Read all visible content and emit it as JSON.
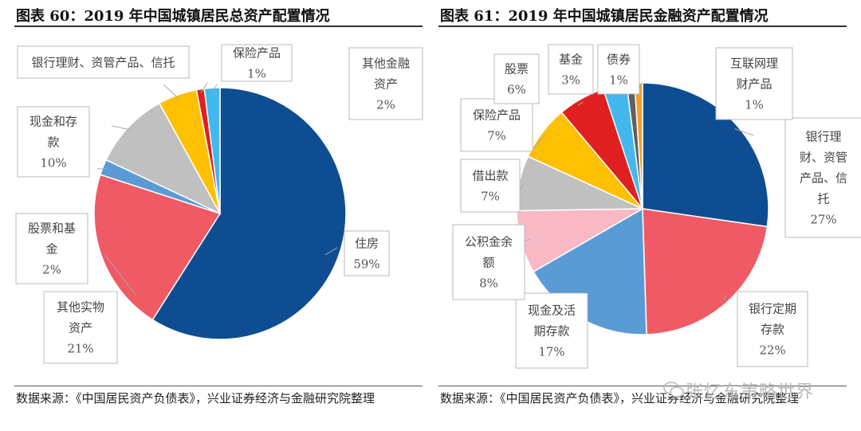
{
  "chart_data": [
    {
      "type": "pie",
      "title": "图表 60：2019 年中国城镇居民总资产配置情况",
      "source": "数据来源：《中国居民资产负债表》，兴业证券经济与金融研究院整理",
      "start_angle_deg": 0,
      "slices": [
        {
          "name": "住房",
          "label_lines": [
            "住房"
          ],
          "pct_text": "59%",
          "value": 59,
          "color": "#0e4d92"
        },
        {
          "name": "其他实物资产",
          "label_lines": [
            "其他实物",
            "资产"
          ],
          "pct_text": "21%",
          "value": 21,
          "color": "#f05a64"
        },
        {
          "name": "股票和基金",
          "label_lines": [
            "股票和基",
            "金"
          ],
          "pct_text": "2%",
          "value": 2,
          "color": "#5b9bd5"
        },
        {
          "name": "现金和存款",
          "label_lines": [
            "现金和存",
            "款"
          ],
          "pct_text": "10%",
          "value": 10,
          "color": "#c0c0c0"
        },
        {
          "name": "银行理财、资管产品、信托",
          "label_lines": [
            "银行理财、资管产品、信托"
          ],
          "pct_text": "",
          "value": 5,
          "color": "#ffc000"
        },
        {
          "name": "保险产品",
          "label_lines": [
            "保险产品"
          ],
          "pct_text": "1%",
          "value": 1,
          "color": "#e02020"
        },
        {
          "name": "其他金融资产",
          "label_lines": [
            "其他金融",
            "资产"
          ],
          "pct_text": "2%",
          "value": 2,
          "color": "#42b8ee"
        }
      ]
    },
    {
      "type": "pie",
      "title": "图表 61：2019 年中国城镇居民金融资产配置情况",
      "source": "数据来源：《中国居民资产负债表》，兴业证券经济与金融研究院整理",
      "start_angle_deg": 0,
      "slices": [
        {
          "name": "银行理财、资管产品、信托",
          "label_lines": [
            "银行理",
            "财、资管",
            "产品、信",
            "托"
          ],
          "pct_text": "27%",
          "value": 27,
          "color": "#0e4d92"
        },
        {
          "name": "银行定期存款",
          "label_lines": [
            "银行定期",
            "存款"
          ],
          "pct_text": "22%",
          "value": 22,
          "color": "#f05a64"
        },
        {
          "name": "现金及活期存款",
          "label_lines": [
            "现金及活",
            "期存款"
          ],
          "pct_text": "17%",
          "value": 17,
          "color": "#5b9bd5"
        },
        {
          "name": "公积金余额",
          "label_lines": [
            "公积金余",
            "额"
          ],
          "pct_text": "8%",
          "value": 8,
          "color": "#f8b8c4"
        },
        {
          "name": "借出款",
          "label_lines": [
            "借出款"
          ],
          "pct_text": "7%",
          "value": 7,
          "color": "#c0c0c0"
        },
        {
          "name": "保险产品",
          "label_lines": [
            "保险产品"
          ],
          "pct_text": "7%",
          "value": 7,
          "color": "#ffc000"
        },
        {
          "name": "股票",
          "label_lines": [
            "股票"
          ],
          "pct_text": "6%",
          "value": 6,
          "color": "#e02020"
        },
        {
          "name": "基金",
          "label_lines": [
            "基金"
          ],
          "pct_text": "3%",
          "value": 3,
          "color": "#42b8ee"
        },
        {
          "name": "债券",
          "label_lines": [
            "债券"
          ],
          "pct_text": "1%",
          "value": 1,
          "color": "#606060"
        },
        {
          "name": "互联网理财产品",
          "label_lines": [
            "互联网理",
            "财产品"
          ],
          "pct_text": "1%",
          "value": 1,
          "color": "#f0a030"
        }
      ]
    }
  ],
  "watermark": "张忆东策略世界"
}
